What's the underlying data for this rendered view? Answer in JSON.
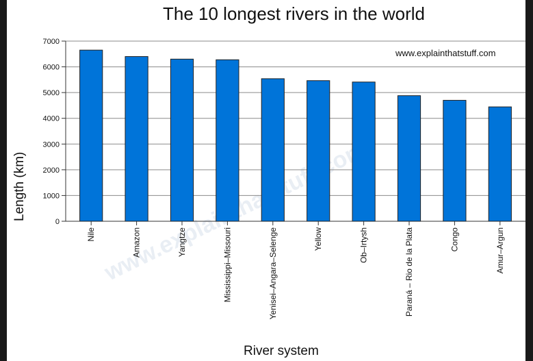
{
  "chart_data": {
    "type": "bar",
    "title": "The 10 longest rivers in the world",
    "xlabel": "River system",
    "ylabel": "Length (km)",
    "source_note": "www.explainthatstuff.com",
    "watermark": "www.explainthatstuff.com",
    "ylim": [
      0,
      7000
    ],
    "yticks": [
      0,
      1000,
      2000,
      3000,
      4000,
      5000,
      6000,
      7000
    ],
    "grid": true,
    "bar_color": "#0074d9",
    "categories": [
      "Nile",
      "Amazon",
      "Yangtze",
      "Mississippi–Missouri",
      "Yenisei–Angara–Selenge",
      "Yellow",
      "Ob–Irtysh",
      "Paraná – Rio de la Plata",
      "Congo",
      "Amur–Argun"
    ],
    "values": [
      6650,
      6400,
      6300,
      6275,
      5539,
      5464,
      5410,
      4880,
      4700,
      4444
    ]
  }
}
